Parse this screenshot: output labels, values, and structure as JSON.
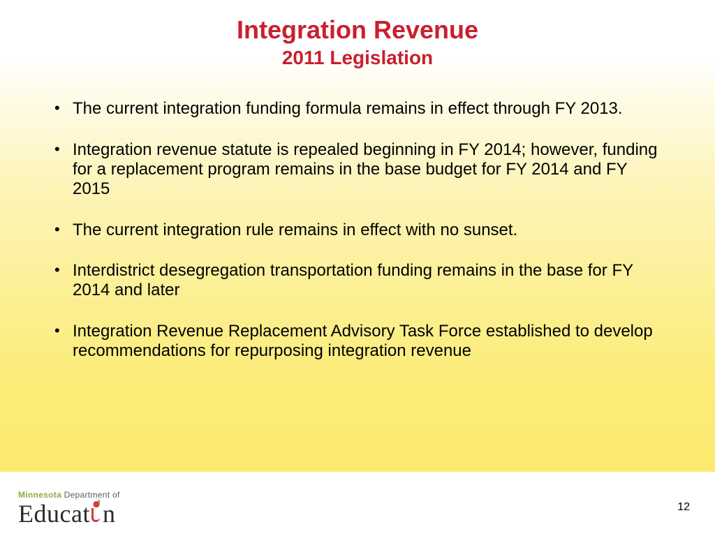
{
  "title": {
    "main": "Integration Revenue",
    "sub": "2011 Legislation",
    "color": "#c8202f",
    "main_fontsize": 36,
    "sub_fontsize": 28
  },
  "bullets": {
    "fontsize": 24,
    "text_color": "#000000",
    "items": [
      "The current integration funding formula remains in effect through FY 2013.",
      "Integration revenue statute is repealed beginning in FY 2014; however, funding for a replacement program remains in the base budget  for FY 2014 and FY 2015",
      "The current integration rule remains in effect with no sunset.",
      "Interdistrict desegregation transportation funding remains in the base for FY 2014 and later",
      "Integration Revenue Replacement Advisory Task Force established to develop recommendations for repurposing integration revenue"
    ]
  },
  "footer": {
    "logo_line1_a": "Minnesota",
    "logo_line1_b": " Department of",
    "logo_line2_pre": "Educat",
    "logo_line2_post": "n",
    "page_number": "12"
  },
  "background": {
    "gradient_top": "#ffffff",
    "gradient_mid": "#fcec7a",
    "gradient_footer": "#ffffff"
  }
}
